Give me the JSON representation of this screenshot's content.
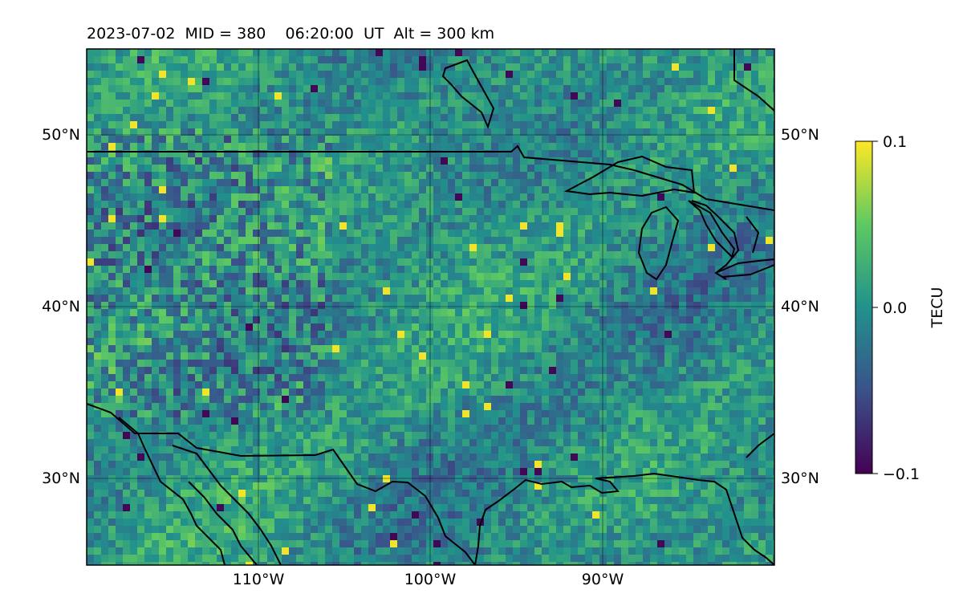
{
  "title": "2023-07-02  MID = 380    06:20:00  UT  Alt = 300 km",
  "map": {
    "lon_range": [
      -120,
      -80
    ],
    "lat_range": [
      25,
      55
    ],
    "lon_ticks": [
      {
        "value": -110,
        "label": "110°W"
      },
      {
        "value": -100,
        "label": "100°W"
      },
      {
        "value": -90,
        "label": "90°W"
      }
    ],
    "lat_ticks": [
      {
        "value": 50,
        "label": "50°N"
      },
      {
        "value": 40,
        "label": "40°N"
      },
      {
        "value": 30,
        "label": "30°N"
      }
    ],
    "grid": true,
    "colormap": "viridis",
    "cmap_colors": [
      "#440154",
      "#3b528b",
      "#21918c",
      "#5ec962",
      "#fde725"
    ]
  },
  "colorbar": {
    "label": "TECU",
    "vmin": -0.1,
    "vmax": 0.1,
    "ticks": [
      {
        "value": 0.1,
        "label": "0.1"
      },
      {
        "value": 0.0,
        "label": "0.0"
      },
      {
        "value": -0.1,
        "label": "−0.1"
      }
    ]
  }
}
